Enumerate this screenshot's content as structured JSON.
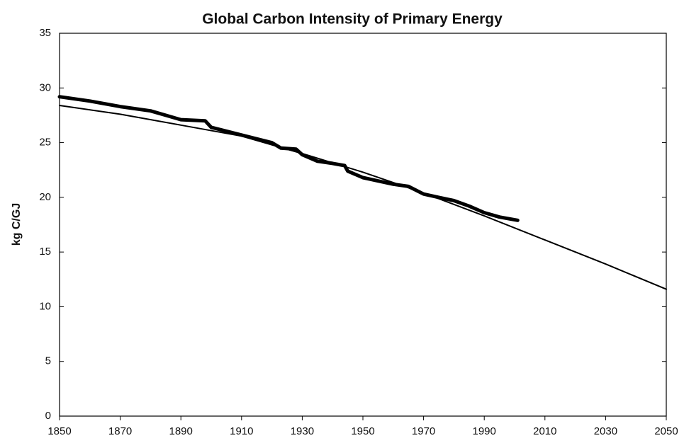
{
  "chart_data": {
    "type": "line",
    "title": "Global Carbon Intensity of Primary Energy",
    "y_label": "kg C/GJ",
    "xlim": [
      1850,
      2050
    ],
    "xticks": [
      1850,
      1870,
      1890,
      1910,
      1930,
      1950,
      1970,
      1990,
      2010,
      2030,
      2050
    ],
    "ylim": [
      0,
      35
    ],
    "yticks": [
      0,
      5,
      10,
      15,
      20,
      25,
      30,
      35
    ],
    "grid": false,
    "series": [
      {
        "color": "#000000",
        "width": 5,
        "x": [
          1850,
          1860,
          1870,
          1880,
          1885,
          1890,
          1898,
          1900,
          1910,
          1920,
          1923,
          1928,
          1930,
          1935,
          1940,
          1944,
          1945,
          1950,
          1955,
          1960,
          1965,
          1970,
          1975,
          1980,
          1985,
          1990,
          1995,
          2001
        ],
        "values": [
          29.2,
          28.8,
          28.3,
          27.9,
          27.5,
          27.1,
          27.0,
          26.4,
          25.7,
          25.0,
          24.5,
          24.4,
          23.9,
          23.3,
          23.1,
          22.9,
          22.4,
          21.8,
          21.5,
          21.2,
          21.0,
          20.3,
          20.0,
          19.7,
          19.2,
          18.6,
          18.2,
          17.9
        ]
      },
      {
        "color": "#000000",
        "width": 2,
        "x": [
          1850,
          1870,
          1890,
          1910,
          1930,
          1950,
          1970,
          1990,
          2010,
          2030,
          2050
        ],
        "values": [
          28.4,
          27.6,
          26.6,
          25.6,
          24.0,
          22.3,
          20.4,
          18.3,
          16.1,
          13.9,
          11.6
        ]
      }
    ]
  }
}
